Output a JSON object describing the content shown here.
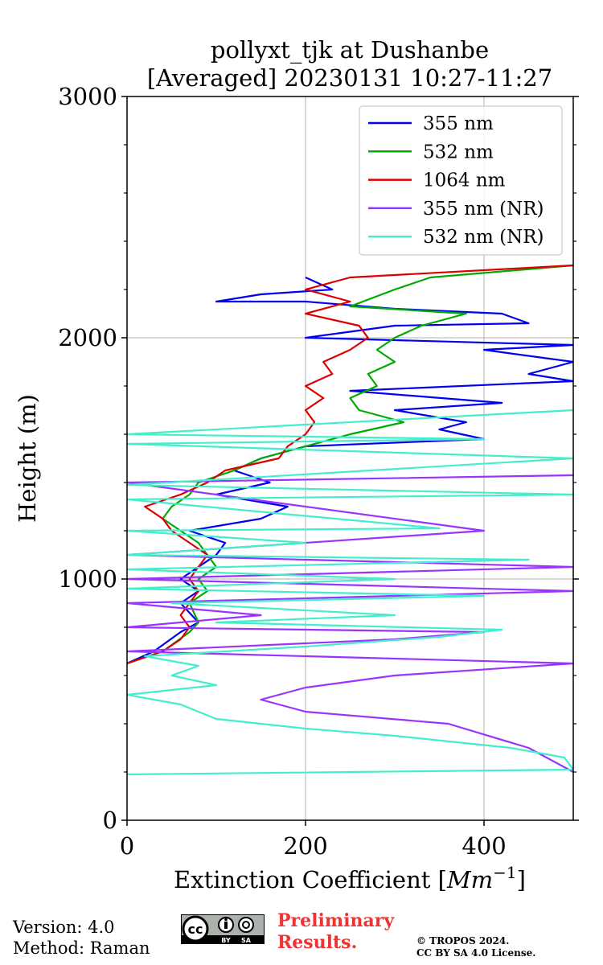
{
  "chart_data": {
    "type": "line",
    "title_line1": "pollyxt_tjk at Dushanbe",
    "title_line2": "[Averaged] 20230131 10:27-11:27",
    "xlabel_text": "Extinction Coefficient [",
    "xlabel_unit": "Mm",
    "xlabel_exp": "−1",
    "xlabel_close": "]",
    "ylabel": "Height (m)",
    "xlim": [
      0,
      500
    ],
    "ylim": [
      0,
      3000
    ],
    "xticks": [
      0,
      200,
      400
    ],
    "yticks": [
      0,
      1000,
      2000,
      3000
    ],
    "grid": true,
    "legend_position": "top-right",
    "series": [
      {
        "name": "355 nm",
        "color": "#0000ee",
        "points": [
          [
            0,
            650
          ],
          [
            30,
            700
          ],
          [
            60,
            780
          ],
          [
            80,
            820
          ],
          [
            60,
            900
          ],
          [
            80,
            950
          ],
          [
            60,
            1000
          ],
          [
            80,
            1050
          ],
          [
            100,
            1100
          ],
          [
            110,
            1150
          ],
          [
            70,
            1200
          ],
          [
            150,
            1250
          ],
          [
            180,
            1300
          ],
          [
            100,
            1350
          ],
          [
            160,
            1400
          ],
          [
            120,
            1450
          ],
          [
            150,
            1500
          ],
          [
            200,
            1550
          ],
          [
            400,
            1580
          ],
          [
            350,
            1620
          ],
          [
            380,
            1650
          ],
          [
            300,
            1700
          ],
          [
            420,
            1730
          ],
          [
            250,
            1780
          ],
          [
            500,
            1820
          ],
          [
            450,
            1850
          ],
          [
            500,
            1900
          ],
          [
            400,
            1950
          ],
          [
            500,
            1970
          ],
          [
            200,
            2000
          ],
          [
            300,
            2050
          ],
          [
            450,
            2060
          ],
          [
            420,
            2100
          ],
          [
            300,
            2120
          ],
          [
            200,
            2150
          ],
          [
            100,
            2150
          ],
          [
            150,
            2180
          ],
          [
            230,
            2200
          ],
          [
            200,
            2250
          ]
        ]
      },
      {
        "name": "532 nm",
        "color": "#00aa00",
        "points": [
          [
            0,
            650
          ],
          [
            40,
            700
          ],
          [
            70,
            780
          ],
          [
            80,
            820
          ],
          [
            70,
            900
          ],
          [
            90,
            950
          ],
          [
            80,
            1000
          ],
          [
            100,
            1050
          ],
          [
            90,
            1100
          ],
          [
            80,
            1150
          ],
          [
            60,
            1200
          ],
          [
            40,
            1250
          ],
          [
            50,
            1300
          ],
          [
            70,
            1350
          ],
          [
            80,
            1400
          ],
          [
            120,
            1450
          ],
          [
            150,
            1500
          ],
          [
            200,
            1550
          ],
          [
            250,
            1600
          ],
          [
            310,
            1650
          ],
          [
            260,
            1700
          ],
          [
            250,
            1750
          ],
          [
            280,
            1800
          ],
          [
            270,
            1850
          ],
          [
            300,
            1900
          ],
          [
            280,
            1950
          ],
          [
            300,
            2000
          ],
          [
            330,
            2050
          ],
          [
            380,
            2100
          ],
          [
            250,
            2130
          ],
          [
            300,
            2200
          ],
          [
            340,
            2250
          ],
          [
            500,
            2300
          ]
        ]
      },
      {
        "name": "1064 nm",
        "color": "#dd0000",
        "points": [
          [
            0,
            650
          ],
          [
            40,
            700
          ],
          [
            60,
            750
          ],
          [
            70,
            800
          ],
          [
            60,
            850
          ],
          [
            70,
            900
          ],
          [
            80,
            950
          ],
          [
            70,
            1000
          ],
          [
            80,
            1050
          ],
          [
            90,
            1100
          ],
          [
            70,
            1150
          ],
          [
            50,
            1200
          ],
          [
            40,
            1250
          ],
          [
            20,
            1300
          ],
          [
            60,
            1350
          ],
          [
            90,
            1400
          ],
          [
            110,
            1450
          ],
          [
            170,
            1500
          ],
          [
            180,
            1550
          ],
          [
            200,
            1600
          ],
          [
            210,
            1650
          ],
          [
            200,
            1700
          ],
          [
            220,
            1750
          ],
          [
            200,
            1800
          ],
          [
            230,
            1850
          ],
          [
            220,
            1900
          ],
          [
            250,
            1950
          ],
          [
            270,
            2000
          ],
          [
            260,
            2050
          ],
          [
            200,
            2100
          ],
          [
            250,
            2150
          ],
          [
            200,
            2200
          ],
          [
            250,
            2250
          ],
          [
            500,
            2300
          ]
        ]
      },
      {
        "name": "355 nm (NR)",
        "color": "#9933ff",
        "points": [
          [
            500,
            200
          ],
          [
            450,
            300
          ],
          [
            360,
            400
          ],
          [
            200,
            450
          ],
          [
            150,
            500
          ],
          [
            200,
            550
          ],
          [
            300,
            600
          ],
          [
            500,
            650
          ],
          [
            0,
            700
          ],
          [
            300,
            750
          ],
          [
            400,
            780
          ],
          [
            0,
            800
          ],
          [
            150,
            850
          ],
          [
            0,
            900
          ],
          [
            500,
            950
          ],
          [
            0,
            1000
          ],
          [
            500,
            1050
          ],
          [
            0,
            1100
          ],
          [
            400,
            1200
          ],
          [
            0,
            1400
          ],
          [
            500,
            1430
          ]
        ]
      },
      {
        "name": "532 nm (NR)",
        "color": "#44eecc",
        "points": [
          [
            0,
            190
          ],
          [
            500,
            210
          ],
          [
            490,
            260
          ],
          [
            430,
            300
          ],
          [
            300,
            350
          ],
          [
            200,
            380
          ],
          [
            100,
            420
          ],
          [
            60,
            480
          ],
          [
            0,
            520
          ],
          [
            100,
            560
          ],
          [
            50,
            600
          ],
          [
            80,
            640
          ],
          [
            20,
            680
          ],
          [
            200,
            720
          ],
          [
            350,
            760
          ],
          [
            420,
            790
          ],
          [
            100,
            820
          ],
          [
            300,
            850
          ],
          [
            50,
            900
          ],
          [
            400,
            930
          ],
          [
            0,
            960
          ],
          [
            300,
            1000
          ],
          [
            0,
            1040
          ],
          [
            450,
            1080
          ],
          [
            0,
            1100
          ],
          [
            200,
            1150
          ],
          [
            0,
            1200
          ],
          [
            350,
            1210
          ],
          [
            0,
            1330
          ],
          [
            500,
            1350
          ],
          [
            0,
            1390
          ],
          [
            500,
            1500
          ],
          [
            0,
            1560
          ],
          [
            400,
            1580
          ],
          [
            0,
            1600
          ],
          [
            500,
            1700
          ]
        ]
      }
    ]
  },
  "footer": {
    "version_line": "Version: 4.0",
    "method_line": "Method: Raman",
    "prelim_line1": "Preliminary",
    "prelim_line2": "Results.",
    "copyright_line1": "© TROPOS 2024.",
    "copyright_line2": "CC BY SA 4.0 License."
  },
  "license_badge": {
    "cc": "cc",
    "by": "BY",
    "sa": "SA"
  }
}
